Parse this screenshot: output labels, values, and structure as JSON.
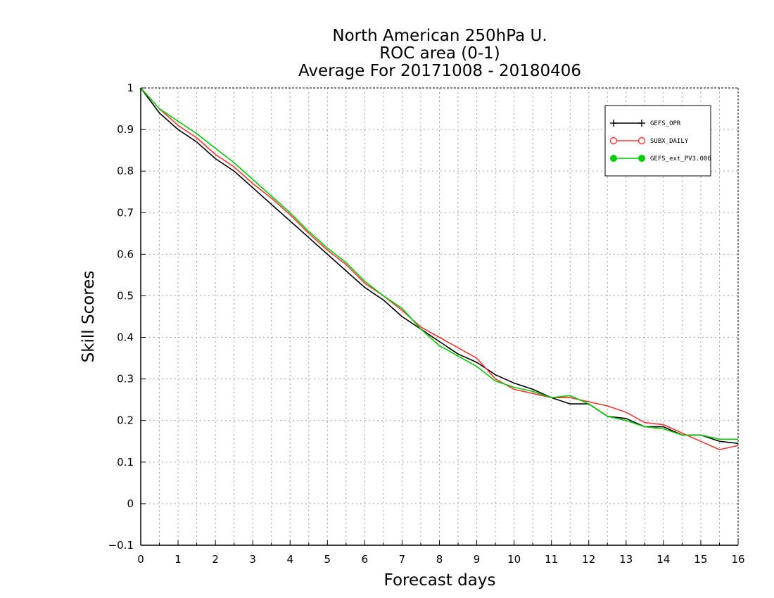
{
  "chart_data": {
    "type": "line",
    "title_lines": [
      "North American 250hPa U.",
      "ROC area (0-1)",
      "Average For 20171008 - 20180406"
    ],
    "xlabel": "Forecast days",
    "ylabel": "Skill Scores",
    "xlim": [
      0,
      16
    ],
    "ylim": [
      -0.1,
      1
    ],
    "xticks": [
      0,
      1,
      2,
      3,
      4,
      5,
      6,
      7,
      8,
      9,
      10,
      11,
      12,
      13,
      14,
      15,
      16
    ],
    "yticks": [
      -0.1,
      0,
      0.1,
      0.2,
      0.3,
      0.4,
      0.5,
      0.6,
      0.7,
      0.8,
      0.9,
      1
    ],
    "ytick_labels": [
      "−0.1",
      "0",
      "0.1",
      "0.2",
      "0.3",
      "0.4",
      "0.5",
      "0.6",
      "0.7",
      "0.8",
      "0.9",
      "1"
    ],
    "grid": true,
    "legend_position": "top-right",
    "x": [
      0,
      0.5,
      1,
      1.5,
      2,
      2.5,
      3,
      3.5,
      4,
      4.5,
      5,
      5.5,
      6,
      6.5,
      7,
      7.5,
      8,
      8.5,
      9,
      9.5,
      10,
      10.5,
      11,
      11.5,
      12,
      12.5,
      13,
      13.5,
      14,
      14.5,
      15,
      15.5,
      16
    ],
    "series": [
      {
        "name": "GEFS_OPR",
        "color": "#000000",
        "marker": "plus",
        "values": [
          1.0,
          0.94,
          0.9,
          0.87,
          0.83,
          0.8,
          0.76,
          0.72,
          0.68,
          0.64,
          0.6,
          0.56,
          0.52,
          0.49,
          0.45,
          0.42,
          0.39,
          0.36,
          0.34,
          0.31,
          0.29,
          0.275,
          0.255,
          0.24,
          0.24,
          0.21,
          0.205,
          0.185,
          0.185,
          0.165,
          0.165,
          0.15,
          0.145
        ]
      },
      {
        "name": "SUBX_DAILY",
        "color": "#ff3333",
        "marker": "circle",
        "values": [
          1.0,
          0.95,
          0.91,
          0.88,
          0.84,
          0.81,
          0.77,
          0.735,
          0.695,
          0.65,
          0.61,
          0.575,
          0.53,
          0.5,
          0.465,
          0.425,
          0.4,
          0.375,
          0.35,
          0.3,
          0.275,
          0.265,
          0.255,
          0.255,
          0.245,
          0.235,
          0.22,
          0.195,
          0.19,
          0.17,
          0.15,
          0.13,
          0.14
        ]
      },
      {
        "name": "GEFS_ext_PV3.006",
        "color": "#00cc00",
        "marker": "dot",
        "values": [
          1.0,
          0.95,
          0.92,
          0.89,
          0.855,
          0.82,
          0.78,
          0.74,
          0.7,
          0.655,
          0.615,
          0.58,
          0.535,
          0.5,
          0.47,
          0.42,
          0.38,
          0.355,
          0.33,
          0.295,
          0.28,
          0.27,
          0.255,
          0.26,
          0.24,
          0.21,
          0.2,
          0.185,
          0.18,
          0.165,
          0.165,
          0.155,
          0.155
        ]
      }
    ]
  }
}
